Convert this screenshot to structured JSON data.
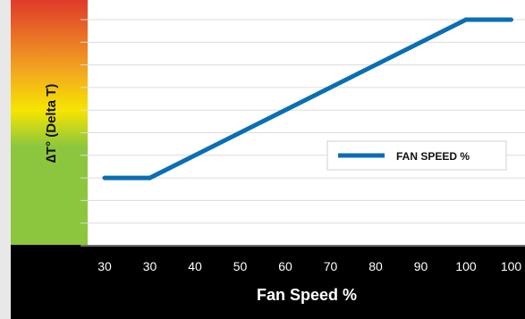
{
  "chart_data": {
    "type": "line",
    "title": "",
    "xlabel": "Fan Speed %",
    "ylabel": "∆T° (Delta T)",
    "x_tick_labels": [
      "30",
      "30",
      "40",
      "50",
      "60",
      "70",
      "80",
      "90",
      "100",
      "100"
    ],
    "series": [
      {
        "name": "FAN SPEED %",
        "color": "#0a6eb4",
        "points": [
          {
            "x_index": 0,
            "y_level": 3
          },
          {
            "x_index": 1,
            "y_level": 3
          },
          {
            "x_index": 8,
            "y_level": 10
          },
          {
            "x_index": 9,
            "y_level": 10
          }
        ]
      }
    ],
    "y_levels": 10,
    "grid": true,
    "legend_position": "right-middle",
    "y_gradient_colors": [
      "#e03a2a",
      "#f2a321",
      "#f6e500",
      "#8cc63e"
    ],
    "x_axis_background": "#000000"
  }
}
